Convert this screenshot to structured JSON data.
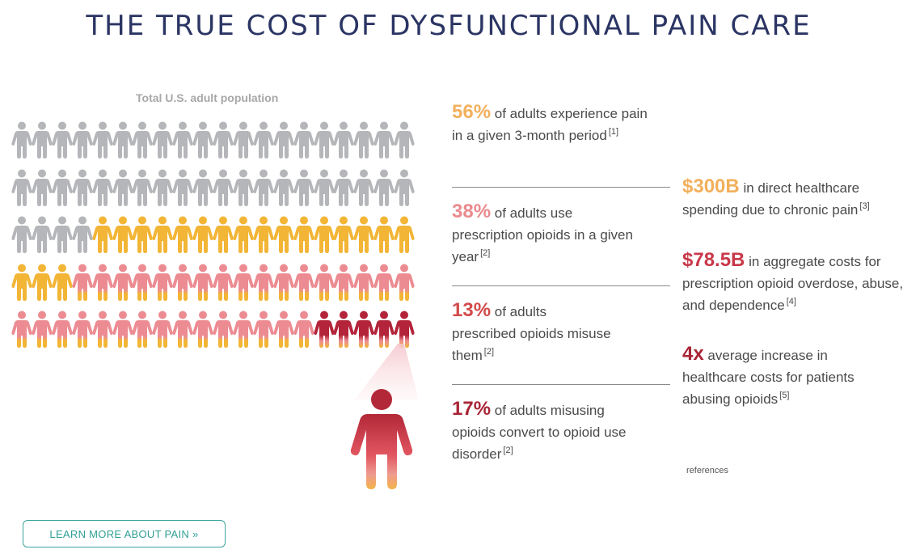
{
  "title": "THE TRUE COST OF DYSFUNCTIONAL PAIN CARE",
  "population_label": "Total U.S. adult population",
  "colors": {
    "gray": "#b5b6b9",
    "orange": "#f2b536",
    "pink": "#ec8c92",
    "darkred": "#b3243a",
    "teal": "#3aa59c",
    "navy": "#2b3564"
  },
  "people_grid": {
    "icon": "person-icon",
    "rows": 5,
    "per_row": 20,
    "rows_categories": [
      [
        "gray",
        "gray",
        "gray",
        "gray",
        "gray",
        "gray",
        "gray",
        "gray",
        "gray",
        "gray",
        "gray",
        "gray",
        "gray",
        "gray",
        "gray",
        "gray",
        "gray",
        "gray",
        "gray",
        "gray"
      ],
      [
        "gray",
        "gray",
        "gray",
        "gray",
        "gray",
        "gray",
        "gray",
        "gray",
        "gray",
        "gray",
        "gray",
        "gray",
        "gray",
        "gray",
        "gray",
        "gray",
        "gray",
        "gray",
        "gray",
        "gray"
      ],
      [
        "gray",
        "gray",
        "gray",
        "gray",
        "orange",
        "orange",
        "orange",
        "orange",
        "orange",
        "orange",
        "orange",
        "orange",
        "orange",
        "orange",
        "orange",
        "orange",
        "orange",
        "orange",
        "orange",
        "orange"
      ],
      [
        "orange",
        "orange",
        "orange",
        "pink",
        "pink",
        "pink",
        "pink",
        "pink",
        "pink",
        "pink",
        "pink",
        "pink",
        "pink",
        "pink",
        "pink",
        "pink",
        "pink",
        "pink",
        "pink",
        "pink"
      ],
      [
        "pink",
        "pink",
        "pink",
        "pink",
        "pink",
        "pink",
        "pink",
        "pink",
        "pink",
        "pink",
        "pink",
        "pink",
        "pink",
        "pink",
        "pink",
        "darkred",
        "darkred",
        "darkred",
        "darkred",
        "darkred"
      ]
    ]
  },
  "highlight_icon": "person-icon",
  "stats_left": [
    {
      "value": "56%",
      "text": " of adults experience pain in a given 3-month period",
      "ref": "[1]",
      "color": "#f2b05c"
    },
    {
      "value": "38%",
      "text": " of adults use prescription opioids in a given year",
      "ref": "[2]",
      "color": "#ea8a8e"
    },
    {
      "value": "13%",
      "text": " of adults prescribed opioids misuse them",
      "ref": "[2]",
      "color": "#d34a4a"
    },
    {
      "value": "17%",
      "text": " of adults misusing opioids convert to opioid use disorder",
      "ref": "[2]",
      "color": "#a82536"
    }
  ],
  "stats_right": [
    {
      "value": "$300B",
      "text": " in direct healthcare spending due to chronic pain",
      "ref": "[3]",
      "color": "#f2b05c"
    },
    {
      "value": "$78.5B",
      "text": " in aggregate costs for prescription opioid overdose, abuse, and dependence",
      "ref": "[4]",
      "color": "#c8394a"
    },
    {
      "value": "4x",
      "text": " average increase in healthcare costs for patients abusing opioids",
      "ref": "[5]",
      "color": "#a82536"
    }
  ],
  "references_link": "references",
  "learn_more_button": "LEARN MORE ABOUT PAIN  »"
}
